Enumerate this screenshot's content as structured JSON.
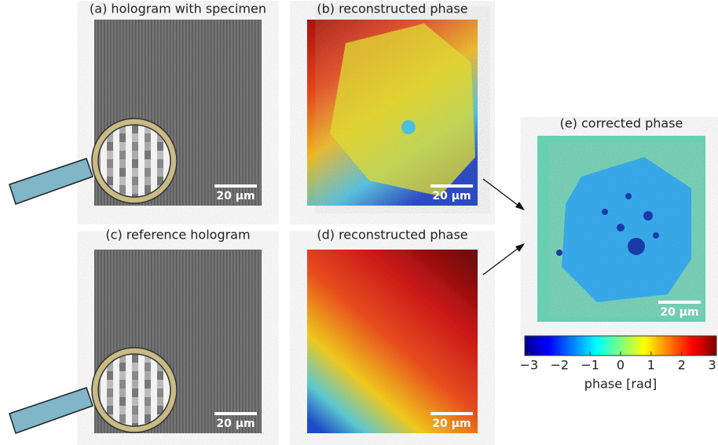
{
  "panels": [
    {
      "title": "(a) hologram with specimen",
      "scale_bar": "20 µm"
    },
    {
      "title": "(b) reconstructed phase",
      "scale_bar": "20 µm"
    },
    {
      "title": "(c) reference hologram",
      "scale_bar": "20 µm"
    },
    {
      "title": "(d) reconstructed phase",
      "scale_bar": "20 µm"
    },
    {
      "title": "(e) corrected phase",
      "scale_bar": "20 µm"
    }
  ],
  "colorbar": {
    "range": [
      -3.14,
      3.14
    ],
    "ticks": [
      {
        "value": -3,
        "label": "−3"
      },
      {
        "value": -2,
        "label": "−2"
      },
      {
        "value": -1,
        "label": "−1"
      },
      0,
      1,
      2,
      3
    ],
    "label": "phase [rad]"
  }
}
